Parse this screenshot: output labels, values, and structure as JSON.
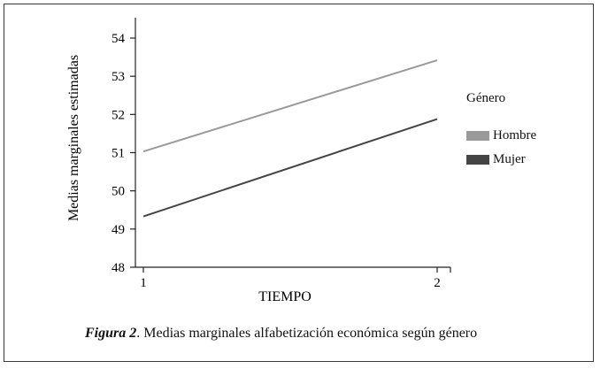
{
  "chart_data": {
    "type": "line",
    "title": "",
    "xlabel": "TIEMPO",
    "ylabel": "Medias marginales estimadas",
    "categories": [
      "1",
      "2"
    ],
    "ylim": [
      48,
      54
    ],
    "yticks": [
      "48",
      "49",
      "50",
      "51",
      "52",
      "53",
      "54"
    ],
    "grid": false,
    "legend_position": "right",
    "legend_title": "Género",
    "series": [
      {
        "name": "Hombre",
        "values": [
          51.03,
          53.42
        ],
        "color": "#9a9a9a"
      },
      {
        "name": "Mujer",
        "values": [
          49.33,
          51.88
        ],
        "color": "#444444"
      }
    ]
  },
  "caption": {
    "figure_label": "Figura 2",
    "text": ". Medias marginales alfabetización económica según género"
  }
}
